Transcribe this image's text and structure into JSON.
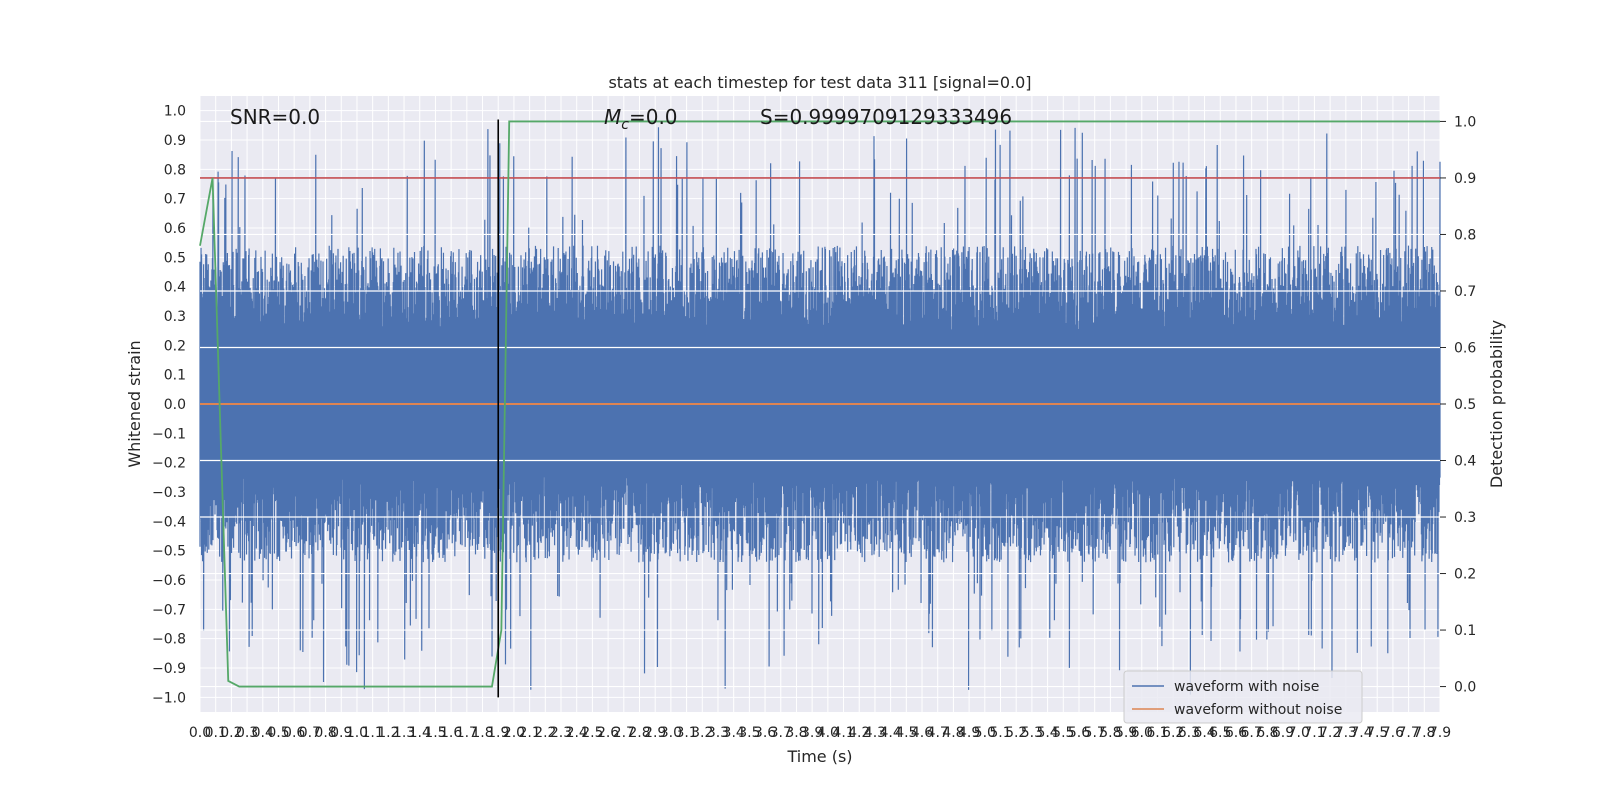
{
  "chart_data": {
    "type": "line",
    "title": "stats at each timestep for test data 311 [signal=0.0]",
    "xlabel": "Time (s)",
    "ylabel": "Whitened strain",
    "y2label": "Detection probability",
    "xlim": [
      0,
      7.9
    ],
    "ylim": [
      -1.05,
      1.05
    ],
    "y2lim": [
      -0.045,
      1.045
    ],
    "x_ticks": [
      "0.0",
      "0.1",
      "0.2",
      "0.3",
      "0.4",
      "0.5",
      "0.6",
      "0.7",
      "0.8",
      "0.9",
      "1.0",
      "1.1",
      "1.2",
      "1.3",
      "1.4",
      "1.5",
      "1.6",
      "1.7",
      "1.8",
      "1.9",
      "2.0",
      "2.1",
      "2.2",
      "2.3",
      "2.4",
      "2.5",
      "2.6",
      "2.7",
      "2.8",
      "2.9",
      "3.0",
      "3.1",
      "3.2",
      "3.3",
      "3.4",
      "3.5",
      "3.6",
      "3.7",
      "3.8",
      "3.9",
      "4.0",
      "4.1",
      "4.2",
      "4.3",
      "4.4",
      "4.5",
      "4.6",
      "4.7",
      "4.8",
      "4.9",
      "5.0",
      "5.1",
      "5.2",
      "5.3",
      "5.4",
      "5.5",
      "5.6",
      "5.7",
      "5.8",
      "5.9",
      "6.0",
      "6.1",
      "6.2",
      "6.3",
      "6.4",
      "6.5",
      "6.6",
      "6.7",
      "6.8",
      "6.9",
      "7.0",
      "7.1",
      "7.2",
      "7.3",
      "7.4",
      "7.5",
      "7.6",
      "7.7",
      "7.8",
      "7.9"
    ],
    "y_ticks": [
      "1.0",
      "0.9",
      "0.8",
      "0.7",
      "0.6",
      "0.5",
      "0.4",
      "0.3",
      "0.2",
      "0.1",
      "0.0",
      "−0.1",
      "−0.2",
      "−0.3",
      "−0.4",
      "−0.5",
      "−0.6",
      "−0.7",
      "−0.8",
      "−0.9",
      "−1.0"
    ],
    "y2_ticks": [
      "1.0",
      "0.9",
      "0.8",
      "0.7",
      "0.6",
      "0.5",
      "0.4",
      "0.3",
      "0.2",
      "0.1",
      "0.0"
    ],
    "annotations": {
      "snr": "SNR=0.0",
      "mc": "=0.0",
      "mc_symbol": "M",
      "mc_sub": "c",
      "s": "S=0.9999709129333496"
    },
    "series": [
      {
        "name": "waveform with noise",
        "color": "#4c72b0",
        "envelope_pos": 0.45,
        "envelope_neg": -0.45,
        "peak_max": 0.95,
        "peak_min": -1.0
      },
      {
        "name": "waveform without noise",
        "color": "#dd8452",
        "value": 0.0
      },
      {
        "color": "#55a868",
        "axis": "y2",
        "x": [
          0.0,
          0.08,
          0.18,
          0.25,
          1.86,
          1.92,
          1.97,
          7.9
        ],
        "y": [
          0.78,
          0.9,
          0.01,
          0.0,
          0.0,
          0.1,
          1.0,
          1.0
        ]
      },
      {
        "color": "#c44e52",
        "axis": "y2",
        "value": 0.9
      },
      {
        "color": "#000000",
        "x": 1.9,
        "y_range": [
          -1.0,
          0.97
        ]
      }
    ],
    "legend_position": "lower-right",
    "grid": true
  }
}
